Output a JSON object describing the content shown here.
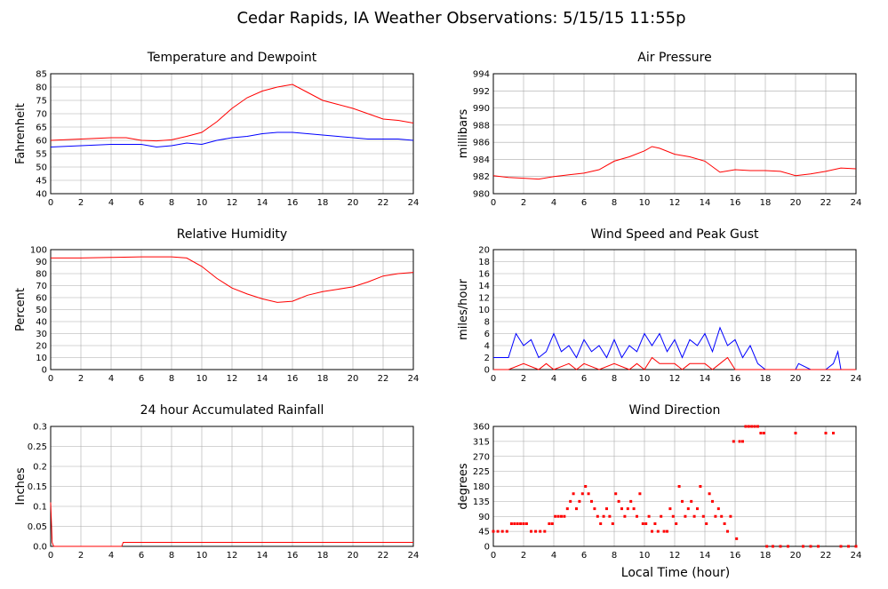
{
  "title": "Cedar Rapids, IA Weather Observations: 5/15/15 11:55p",
  "xlabel": "Local Time (hour)",
  "colors": {
    "red": "#ff0000",
    "blue": "#0000ff",
    "grid": "#aaaaaa",
    "frame": "#000000"
  },
  "chart_data": [
    {
      "id": "temp",
      "type": "line",
      "title": "Temperature and Dewpoint",
      "xlabel": "",
      "ylabel": "Fahrenheit",
      "xlim": [
        0,
        24
      ],
      "ylim": [
        40,
        85
      ],
      "xticks": [
        0,
        2,
        4,
        6,
        8,
        10,
        12,
        14,
        16,
        18,
        20,
        22,
        24
      ],
      "yticks": [
        40,
        45,
        50,
        55,
        60,
        65,
        70,
        75,
        80,
        85
      ],
      "grid": true,
      "series": [
        {
          "color": "#ff0000",
          "x": [
            0,
            2,
            4,
            5,
            6,
            7,
            8,
            9,
            10,
            11,
            12,
            13,
            14,
            15,
            16,
            17,
            18,
            19,
            20,
            21,
            22,
            23,
            24
          ],
          "y": [
            60,
            60.5,
            61,
            61,
            60,
            59.8,
            60.2,
            61.5,
            63,
            67,
            72,
            76,
            78.5,
            80,
            81,
            78,
            75,
            73.5,
            72,
            70,
            68,
            67.5,
            66.5
          ]
        },
        {
          "color": "#0000ff",
          "x": [
            0,
            2,
            4,
            5,
            6,
            7,
            8,
            9,
            10,
            11,
            12,
            13,
            14,
            15,
            16,
            17,
            18,
            19,
            20,
            21,
            22,
            23,
            24
          ],
          "y": [
            57.5,
            58,
            58.5,
            58.5,
            58.5,
            57.5,
            58,
            59,
            58.5,
            60,
            61,
            61.5,
            62.5,
            63,
            63,
            62.5,
            62,
            61.5,
            61,
            60.5,
            60.5,
            60.5,
            60
          ]
        }
      ]
    },
    {
      "id": "pressure",
      "type": "line",
      "title": "Air Pressure",
      "xlabel": "",
      "ylabel": "millibars",
      "xlim": [
        0,
        24
      ],
      "ylim": [
        980,
        994
      ],
      "xticks": [
        0,
        2,
        4,
        6,
        8,
        10,
        12,
        14,
        16,
        18,
        20,
        22,
        24
      ],
      "yticks": [
        980,
        982,
        984,
        986,
        988,
        990,
        992,
        994
      ],
      "grid": true,
      "series": [
        {
          "color": "#ff0000",
          "x": [
            0,
            1,
            2,
            3,
            4,
            5,
            6,
            7,
            8,
            9,
            10,
            10.5,
            11,
            12,
            13,
            14,
            15,
            16,
            17,
            18,
            19,
            20,
            21,
            22,
            23,
            24
          ],
          "y": [
            982.1,
            981.9,
            981.8,
            981.7,
            982,
            982.2,
            982.4,
            982.8,
            983.8,
            984.3,
            985,
            985.5,
            985.3,
            984.6,
            984.3,
            983.8,
            982.5,
            982.8,
            982.7,
            982.7,
            982.6,
            982.1,
            982.3,
            982.6,
            983,
            982.9
          ]
        }
      ]
    },
    {
      "id": "rh",
      "type": "line",
      "title": "Relative Humidity",
      "xlabel": "",
      "ylabel": "Percent",
      "xlim": [
        0,
        24
      ],
      "ylim": [
        0,
        100
      ],
      "xticks": [
        0,
        2,
        4,
        6,
        8,
        10,
        12,
        14,
        16,
        18,
        20,
        22,
        24
      ],
      "yticks": [
        0,
        10,
        20,
        30,
        40,
        50,
        60,
        70,
        80,
        90,
        100
      ],
      "grid": true,
      "series": [
        {
          "color": "#ff0000",
          "x": [
            0,
            2,
            4,
            6,
            7,
            8,
            9,
            10,
            11,
            12,
            13,
            14,
            15,
            16,
            17,
            18,
            19,
            20,
            21,
            22,
            23,
            24
          ],
          "y": [
            93,
            93,
            93.5,
            94,
            94,
            94,
            93,
            86,
            76,
            68,
            63,
            59,
            56,
            57,
            62,
            65,
            67,
            69,
            73,
            78,
            80,
            81
          ]
        }
      ]
    },
    {
      "id": "wind",
      "type": "line",
      "title": "Wind Speed and Peak Gust",
      "xlabel": "",
      "ylabel": "miles/hour",
      "xlim": [
        0,
        24
      ],
      "ylim": [
        0,
        20
      ],
      "xticks": [
        0,
        2,
        4,
        6,
        8,
        10,
        12,
        14,
        16,
        18,
        20,
        22,
        24
      ],
      "yticks": [
        0,
        2,
        4,
        6,
        8,
        10,
        12,
        14,
        16,
        18,
        20
      ],
      "grid": true,
      "series": [
        {
          "color": "#0000ff",
          "x": [
            0,
            0.5,
            1,
            1.5,
            2,
            2.5,
            3,
            3.5,
            4,
            4.5,
            5,
            5.5,
            6,
            6.5,
            7,
            7.5,
            8,
            8.5,
            9,
            9.5,
            10,
            10.5,
            11,
            11.5,
            12,
            12.5,
            13,
            13.5,
            14,
            14.5,
            15,
            15.5,
            16,
            16.5,
            17,
            17.5,
            18,
            19,
            20,
            20.2,
            21,
            22,
            22.5,
            22.8,
            23,
            24
          ],
          "y": [
            2,
            2,
            2,
            6,
            4,
            5,
            2,
            3,
            6,
            3,
            4,
            2,
            5,
            3,
            4,
            2,
            5,
            2,
            4,
            3,
            6,
            4,
            6,
            3,
            5,
            2,
            5,
            4,
            6,
            3,
            7,
            4,
            5,
            2,
            4,
            1,
            0,
            0,
            0,
            1,
            0,
            0,
            1,
            3,
            0,
            0
          ]
        },
        {
          "color": "#ff0000",
          "x": [
            0,
            1,
            2,
            3,
            3.5,
            4,
            5,
            5.5,
            6,
            7,
            8,
            9,
            9.5,
            10,
            10.5,
            11,
            12,
            12.5,
            13,
            14,
            14.5,
            15,
            15.5,
            16,
            17,
            18,
            24
          ],
          "y": [
            0,
            0,
            1,
            0,
            1,
            0,
            1,
            0,
            1,
            0,
            1,
            0,
            1,
            0,
            2,
            1,
            1,
            0,
            1,
            1,
            0,
            1,
            2,
            0,
            0,
            0,
            0
          ]
        }
      ]
    },
    {
      "id": "rain",
      "type": "line",
      "title": "24 hour Accumulated Rainfall",
      "xlabel": "",
      "ylabel": "Inches",
      "xlim": [
        0,
        24
      ],
      "ylim": [
        0,
        0.3
      ],
      "xticks": [
        0,
        2,
        4,
        6,
        8,
        10,
        12,
        14,
        16,
        18,
        20,
        22,
        24
      ],
      "yticks": [
        "0.0",
        "0.05",
        "0.1",
        "0.15",
        "0.2",
        "0.25",
        "0.3"
      ],
      "grid": true,
      "series": [
        {
          "color": "#ff0000",
          "x": [
            0,
            0.1,
            0.2,
            4.7,
            4.8,
            24
          ],
          "y": [
            0.11,
            0.01,
            0.0,
            0.0,
            0.01,
            0.01
          ]
        }
      ]
    },
    {
      "id": "wdir",
      "type": "scatter",
      "title": "Wind Direction",
      "xlabel": "Local Time (hour)",
      "ylabel": "degrees",
      "xlim": [
        0,
        24
      ],
      "ylim": [
        0,
        360
      ],
      "xticks": [
        0,
        2,
        4,
        6,
        8,
        10,
        12,
        14,
        16,
        18,
        20,
        22,
        24
      ],
      "yticks": [
        0,
        45,
        90,
        135,
        180,
        225,
        270,
        315,
        360
      ],
      "grid": true,
      "series": [
        {
          "color": "#ff0000",
          "x": [
            0,
            0.3,
            0.6,
            0.9,
            1.2,
            1.4,
            1.6,
            1.8,
            2.0,
            2.2,
            2.5,
            2.8,
            3.1,
            3.4,
            3.7,
            3.9,
            4.1,
            4.3,
            4.5,
            4.7,
            4.9,
            5.1,
            5.3,
            5.5,
            5.7,
            5.9,
            6.1,
            6.3,
            6.5,
            6.7,
            6.9,
            7.1,
            7.3,
            7.5,
            7.7,
            7.9,
            8.1,
            8.3,
            8.5,
            8.7,
            8.9,
            9.1,
            9.3,
            9.5,
            9.7,
            9.9,
            10.1,
            10.3,
            10.5,
            10.7,
            10.9,
            11.1,
            11.3,
            11.5,
            11.7,
            11.9,
            12.1,
            12.3,
            12.5,
            12.7,
            12.9,
            13.1,
            13.3,
            13.5,
            13.7,
            13.9,
            14.1,
            14.3,
            14.5,
            14.7,
            14.9,
            15.1,
            15.3,
            15.5,
            15.7,
            15.9,
            16.1,
            16.3,
            16.5,
            16.7,
            16.9,
            17.1,
            17.3,
            17.5,
            17.7,
            17.9,
            18.1,
            18.5,
            19.0,
            19.5,
            20.0,
            20.5,
            21.0,
            21.5,
            22.0,
            22.5,
            23.0,
            23.5,
            24
          ],
          "y": [
            45,
            45,
            45,
            45,
            68,
            68,
            68,
            68,
            68,
            68,
            45,
            45,
            45,
            45,
            68,
            68,
            90,
            90,
            90,
            90,
            113,
            135,
            158,
            113,
            135,
            158,
            180,
            158,
            135,
            113,
            90,
            68,
            90,
            113,
            90,
            68,
            158,
            135,
            113,
            90,
            113,
            135,
            113,
            90,
            158,
            68,
            68,
            90,
            45,
            68,
            45,
            90,
            45,
            45,
            113,
            90,
            68,
            180,
            135,
            90,
            113,
            135,
            90,
            113,
            180,
            90,
            68,
            158,
            135,
            90,
            113,
            90,
            68,
            45,
            90,
            315,
            23,
            315,
            315,
            360,
            360,
            360,
            360,
            360,
            340,
            340,
            0,
            0,
            0,
            0,
            340,
            0,
            0,
            0,
            340,
            340,
            0,
            0,
            0
          ]
        }
      ]
    }
  ]
}
